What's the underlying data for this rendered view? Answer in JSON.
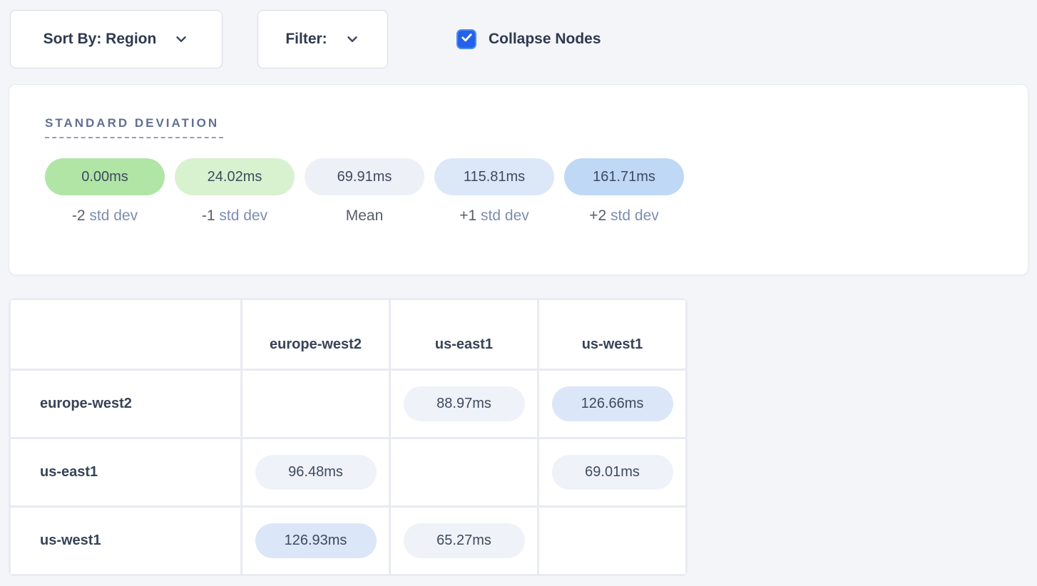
{
  "toolbar": {
    "sort_label": "Sort By: Region",
    "filter_label": "Filter:",
    "collapse_label": "Collapse Nodes",
    "collapse_checked": true
  },
  "legend": {
    "title": "STANDARD DEVIATION",
    "items": [
      {
        "value": "0.00ms",
        "label_prefix": "-2",
        "label_suffix": "std dev",
        "color": "#b0e5a6"
      },
      {
        "value": "24.02ms",
        "label_prefix": "-1",
        "label_suffix": "std dev",
        "color": "#d8f1cf"
      },
      {
        "value": "69.91ms",
        "label_prefix": "Mean",
        "label_suffix": "",
        "color": "#edf0f7"
      },
      {
        "value": "115.81ms",
        "label_prefix": "+1",
        "label_suffix": "std dev",
        "color": "#dce8f8"
      },
      {
        "value": "161.71ms",
        "label_prefix": "+2",
        "label_suffix": "std dev",
        "color": "#bed8f6"
      }
    ]
  },
  "matrix": {
    "columns": [
      "europe-west2",
      "us-east1",
      "us-west1"
    ],
    "rows": [
      {
        "label": "europe-west2",
        "cells": [
          null,
          {
            "value": "88.97ms",
            "tone": "gray"
          },
          {
            "value": "126.66ms",
            "tone": "blue"
          }
        ]
      },
      {
        "label": "us-east1",
        "cells": [
          {
            "value": "96.48ms",
            "tone": "gray"
          },
          null,
          {
            "value": "69.01ms",
            "tone": "gray"
          }
        ]
      },
      {
        "label": "us-west1",
        "cells": [
          {
            "value": "126.93ms",
            "tone": "blue"
          },
          {
            "value": "65.27ms",
            "tone": "gray"
          },
          null
        ]
      }
    ]
  },
  "colors": {
    "checkbox_fill": "#2263ea",
    "checkbox_ring": "#4f8bf0",
    "pill_tone_gray": "#eff2f8",
    "pill_tone_blue": "#dbe7f8",
    "page_background": "#f3f5f9",
    "cell_gap": "#e9ebf2"
  }
}
